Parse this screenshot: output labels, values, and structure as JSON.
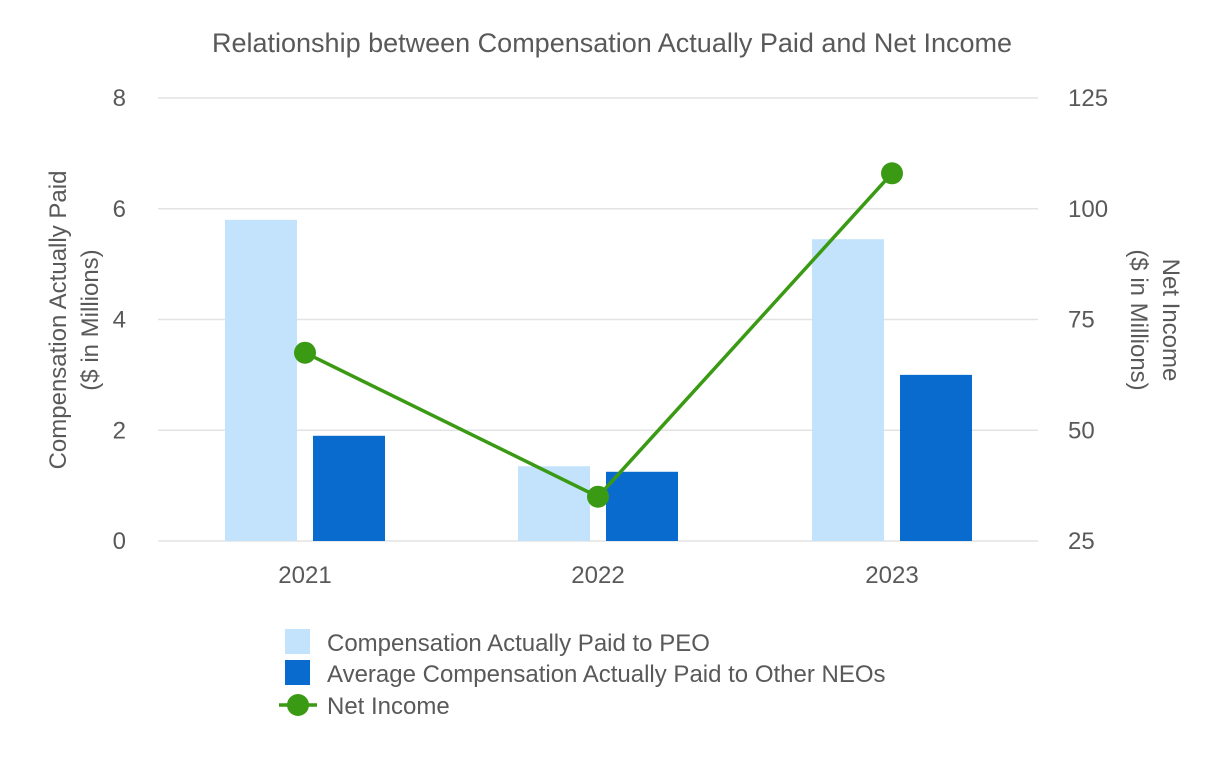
{
  "chart_data": {
    "type": "bar",
    "title": "Relationship between Compensation Actually Paid and Net Income",
    "categories": [
      "2021",
      "2022",
      "2023"
    ],
    "y_left": {
      "label_line1": "Compensation Actually Paid",
      "label_line2": "($ in Millions)",
      "ylim": [
        0,
        8
      ],
      "ticks": [
        0,
        2,
        4,
        6,
        8
      ]
    },
    "y_right": {
      "label_line1": "Net Income",
      "label_line2": "($ in Millions)",
      "ylim": [
        25,
        125
      ],
      "ticks": [
        25,
        50,
        75,
        100,
        125
      ]
    },
    "series": [
      {
        "name": "Compensation Actually Paid to PEO",
        "type": "bar",
        "axis": "left",
        "color": "#c2e3fb",
        "values": [
          5.8,
          1.35,
          5.45
        ]
      },
      {
        "name": "Average Compensation Actually Paid to Other NEOs",
        "type": "bar",
        "axis": "left",
        "color": "#0a6bcf",
        "values": [
          1.9,
          1.25,
          3.0
        ]
      },
      {
        "name": "Net Income",
        "type": "line",
        "axis": "right",
        "color": "#3a9a13",
        "values": [
          67.5,
          35,
          108
        ]
      }
    ],
    "grid": true,
    "legend_position": "bottom"
  }
}
